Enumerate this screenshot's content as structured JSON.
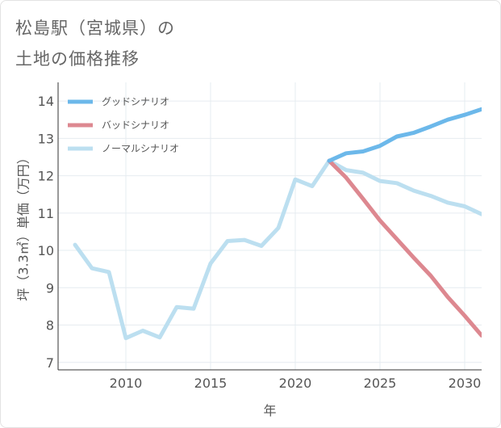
{
  "title": {
    "line1": "松島駅（宮城県）の",
    "line2": "土地の価格推移"
  },
  "chart_data": {
    "type": "line",
    "xlabel": "年",
    "ylabel": "坪（3.3㎡）単価（万円）",
    "xlim": [
      2006,
      2031
    ],
    "ylim": [
      6.8,
      14.5
    ],
    "x_ticks": [
      2010,
      2015,
      2020,
      2025,
      2030
    ],
    "y_ticks": [
      7,
      8,
      9,
      10,
      11,
      12,
      13,
      14
    ],
    "grid": true,
    "legend_position": "top-left",
    "series": [
      {
        "name": "グッドシナリオ",
        "color": "#6cb8ea",
        "x": [
          2022,
          2023,
          2024,
          2025,
          2026,
          2027,
          2028,
          2029,
          2030,
          2031
        ],
        "values": [
          12.4,
          12.6,
          12.65,
          12.8,
          13.05,
          13.15,
          13.32,
          13.5,
          13.63,
          13.78
        ]
      },
      {
        "name": "バッドシナリオ",
        "color": "#dd8890",
        "x": [
          2022,
          2023,
          2024,
          2025,
          2026,
          2027,
          2028,
          2029,
          2030,
          2031
        ],
        "values": [
          12.4,
          11.95,
          11.38,
          10.8,
          10.3,
          9.8,
          9.32,
          8.75,
          8.25,
          7.72
        ]
      },
      {
        "name": "ノーマルシナリオ",
        "color": "#bcdff0",
        "x": [
          2007,
          2008,
          2009,
          2010,
          2011,
          2012,
          2013,
          2014,
          2015,
          2016,
          2017,
          2018,
          2019,
          2020,
          2021,
          2022,
          2023,
          2024,
          2025,
          2026,
          2027,
          2028,
          2029,
          2030,
          2031
        ],
        "values": [
          10.15,
          9.52,
          9.42,
          7.65,
          7.85,
          7.67,
          8.48,
          8.44,
          9.65,
          10.25,
          10.28,
          10.12,
          10.6,
          11.9,
          11.72,
          12.4,
          12.15,
          12.08,
          11.86,
          11.8,
          11.6,
          11.46,
          11.28,
          11.18,
          10.97
        ]
      }
    ]
  }
}
